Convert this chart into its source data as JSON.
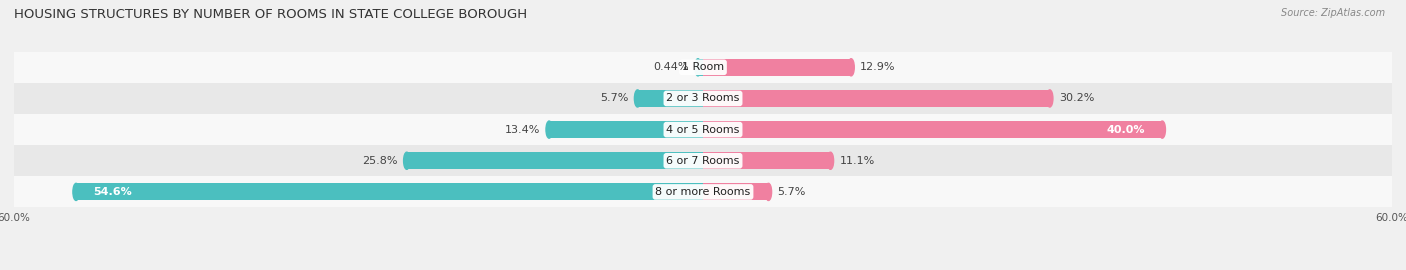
{
  "title": "HOUSING STRUCTURES BY NUMBER OF ROOMS IN STATE COLLEGE BOROUGH",
  "source": "Source: ZipAtlas.com",
  "categories": [
    "1 Room",
    "2 or 3 Rooms",
    "4 or 5 Rooms",
    "6 or 7 Rooms",
    "8 or more Rooms"
  ],
  "owner_values": [
    0.44,
    5.7,
    13.4,
    25.8,
    54.6
  ],
  "renter_values": [
    12.9,
    30.2,
    40.0,
    11.1,
    5.7
  ],
  "owner_color": "#4bbfbf",
  "renter_color": "#f080a0",
  "bar_height": 0.55,
  "xlim": [
    -60,
    60
  ],
  "bg_color": "#f0f0f0",
  "row_bg_light": "#f8f8f8",
  "row_bg_dark": "#e8e8e8",
  "title_fontsize": 9.5,
  "label_fontsize": 8,
  "cat_fontsize": 8,
  "legend_fontsize": 8.5,
  "source_fontsize": 7
}
